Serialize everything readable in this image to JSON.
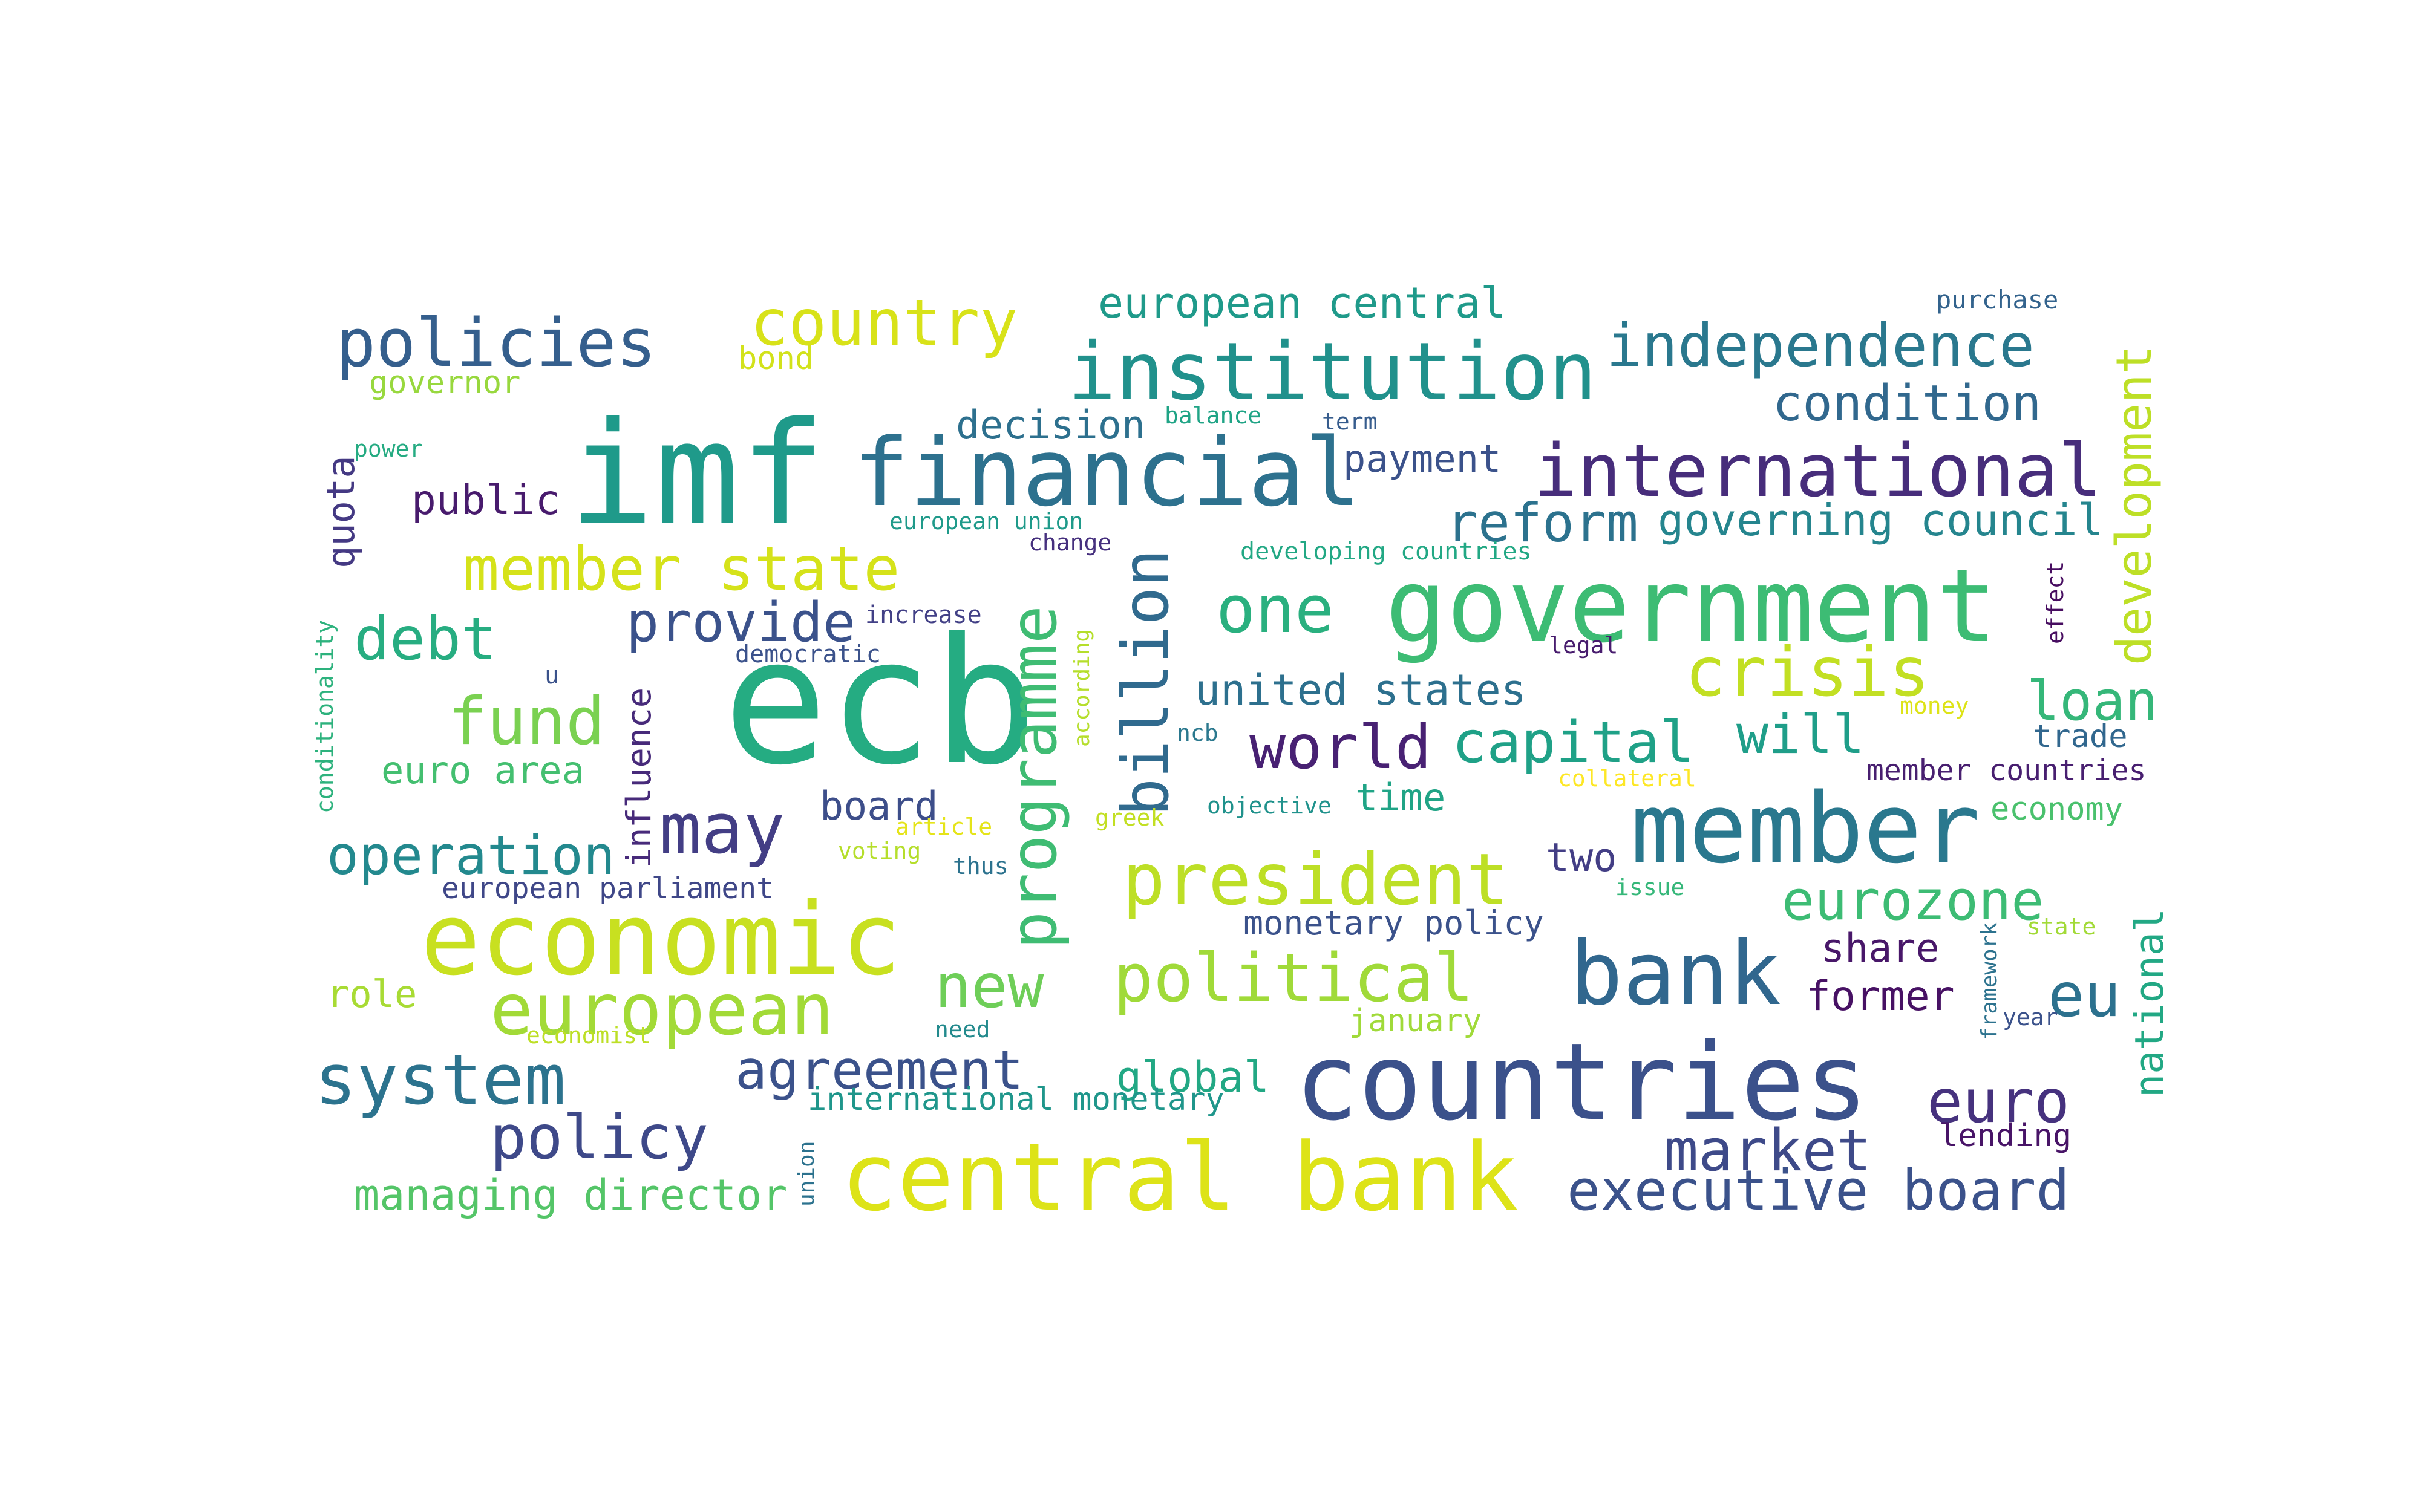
{
  "words": [
    {
      "text": "ecb",
      "color": "#25ac82"
    },
    {
      "text": "imf",
      "color": "#1f9a8a"
    },
    {
      "text": "countries",
      "color": "#3b518b"
    },
    {
      "text": "economic",
      "color": "#c8e020"
    },
    {
      "text": "member",
      "color": "#2a788e"
    },
    {
      "text": "government",
      "color": "#3dbc74"
    },
    {
      "text": "central bank",
      "color": "#dde318"
    },
    {
      "text": "financial",
      "color": "#2d718e"
    },
    {
      "text": "institution",
      "color": "#21918c"
    },
    {
      "text": "bank",
      "color": "#31678e"
    },
    {
      "text": "european",
      "color": "#a2da37"
    },
    {
      "text": "president",
      "color": "#bddf26"
    },
    {
      "text": "international",
      "color": "#472d7b"
    },
    {
      "text": "system",
      "color": "#2c738e"
    },
    {
      "text": "policies",
      "color": "#355f8d"
    },
    {
      "text": "country",
      "color": "#d8e219"
    },
    {
      "text": "programme",
      "color": "#3fbc73"
    },
    {
      "text": "billion",
      "color": "#306a8e"
    },
    {
      "text": "political",
      "color": "#a0da39"
    },
    {
      "text": "member state",
      "color": "#d5e21a"
    },
    {
      "text": "independence",
      "color": "#2a788e"
    },
    {
      "text": "crisis",
      "color": "#c2df23"
    },
    {
      "text": "fund",
      "color": "#7ad151"
    },
    {
      "text": "may",
      "color": "#433e85"
    },
    {
      "text": "policy",
      "color": "#3e4989"
    },
    {
      "text": "executive board",
      "color": "#3b528b"
    },
    {
      "text": "development",
      "color": "#bddf26"
    },
    {
      "text": "one",
      "color": "#2ab07f"
    },
    {
      "text": "new",
      "color": "#6ece58"
    },
    {
      "text": "world",
      "color": "#482173"
    },
    {
      "text": "capital",
      "color": "#1fa187"
    },
    {
      "text": "euro",
      "color": "#46327e"
    },
    {
      "text": "eurozone",
      "color": "#3dbc74"
    },
    {
      "text": "market",
      "color": "#3e4a89"
    },
    {
      "text": "agreement",
      "color": "#3b528b"
    },
    {
      "text": "operation",
      "color": "#23898e"
    },
    {
      "text": "condition",
      "color": "#31688e"
    },
    {
      "text": "reform",
      "color": "#2c728e"
    },
    {
      "text": "governing council",
      "color": "#25858e"
    },
    {
      "text": "loan",
      "color": "#35b779"
    },
    {
      "text": "debt",
      "color": "#27ad81"
    },
    {
      "text": "provide",
      "color": "#3b528b"
    },
    {
      "text": "eu",
      "color": "#2c718e"
    },
    {
      "text": "will",
      "color": "#1f9e89"
    },
    {
      "text": "european central",
      "color": "#1f9a8a"
    },
    {
      "text": "decision",
      "color": "#2d708e"
    },
    {
      "text": "payment",
      "color": "#3b528b"
    },
    {
      "text": "united states",
      "color": "#2d708e"
    },
    {
      "text": "managing director",
      "color": "#54c568"
    },
    {
      "text": "national",
      "color": "#22a884"
    },
    {
      "text": "global",
      "color": "#22a884"
    },
    {
      "text": "share",
      "color": "#481769"
    },
    {
      "text": "former",
      "color": "#471164"
    },
    {
      "text": "public",
      "color": "#481b6d"
    },
    {
      "text": "quota",
      "color": "#443983"
    },
    {
      "text": "euro area",
      "color": "#44bf70"
    },
    {
      "text": "board",
      "color": "#3d4e8a"
    },
    {
      "text": "two",
      "color": "#433e85"
    },
    {
      "text": "time",
      "color": "#20a486"
    },
    {
      "text": "influence",
      "color": "#472a7a"
    },
    {
      "text": "role",
      "color": "#a8db34"
    },
    {
      "text": "monetary policy",
      "color": "#3b528b"
    },
    {
      "text": "european parliament",
      "color": "#3f4788"
    },
    {
      "text": "international monetary",
      "color": "#1f968b"
    },
    {
      "text": "january",
      "color": "#a0da39"
    },
    {
      "text": "economy",
      "color": "#4ac16d"
    },
    {
      "text": "trade",
      "color": "#31678e"
    },
    {
      "text": "member countries",
      "color": "#481f70"
    },
    {
      "text": "lending",
      "color": "#481467"
    },
    {
      "text": "governor",
      "color": "#98d83e"
    },
    {
      "text": "bond",
      "color": "#d2e21b"
    },
    {
      "text": "purchase",
      "color": "#33638d"
    },
    {
      "text": "power",
      "color": "#25ab82"
    },
    {
      "text": "balance",
      "color": "#20a486"
    },
    {
      "text": "term",
      "color": "#365c8d"
    },
    {
      "text": "european union",
      "color": "#1f9a8a"
    },
    {
      "text": "change",
      "color": "#46307e"
    },
    {
      "text": "developing countries",
      "color": "#22a884"
    },
    {
      "text": "increase",
      "color": "#424086"
    },
    {
      "text": "democratic",
      "color": "#3b528b"
    },
    {
      "text": "legal",
      "color": "#481c6e"
    },
    {
      "text": "effect",
      "color": "#470d60"
    },
    {
      "text": "conditionality",
      "color": "#2db27d"
    },
    {
      "text": "u",
      "color": "#3b528b"
    },
    {
      "text": "according",
      "color": "#b5de2b"
    },
    {
      "text": "ncb",
      "color": "#2a788e"
    },
    {
      "text": "money",
      "color": "#dde318"
    },
    {
      "text": "collateral",
      "color": "#fde725"
    },
    {
      "text": "article",
      "color": "#e5e419"
    },
    {
      "text": "objective",
      "color": "#20928c"
    },
    {
      "text": "greek",
      "color": "#c2df23"
    },
    {
      "text": "voting",
      "color": "#b5de2b"
    },
    {
      "text": "thus",
      "color": "#2c728e"
    },
    {
      "text": "issue",
      "color": "#35b779"
    },
    {
      "text": "state",
      "color": "#a2da37"
    },
    {
      "text": "framework",
      "color": "#2c728e"
    },
    {
      "text": "year",
      "color": "#3b528b"
    },
    {
      "text": "need",
      "color": "#238a8d"
    },
    {
      "text": "economist",
      "color": "#bddf26"
    },
    {
      "text": "union",
      "color": "#2c728e"
    }
  ]
}
